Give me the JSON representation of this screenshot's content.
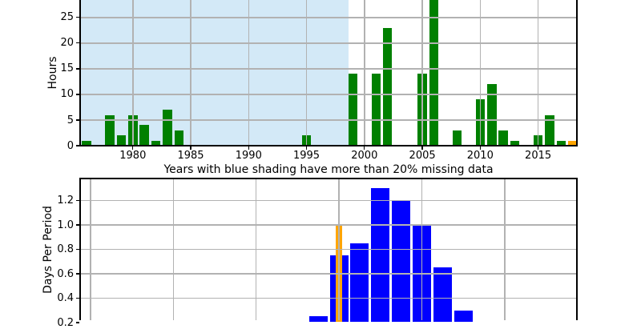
{
  "chart_data": [
    {
      "type": "bar",
      "title": "",
      "xlabel": "Years with blue shading have more than 20% missing data",
      "ylabel": "Hours",
      "x": [
        1976,
        1977,
        1978,
        1979,
        1980,
        1981,
        1982,
        1983,
        1984,
        1985,
        1986,
        1987,
        1988,
        1989,
        1990,
        1991,
        1992,
        1993,
        1994,
        1995,
        1996,
        1997,
        1998,
        1999,
        2000,
        2001,
        2002,
        2003,
        2004,
        2005,
        2006,
        2007,
        2008,
        2009,
        2010,
        2011,
        2012,
        2013,
        2014,
        2015,
        2016,
        2017,
        2018
      ],
      "values": [
        1,
        0,
        6,
        2,
        6,
        4,
        1,
        7,
        3,
        0,
        0,
        0,
        0,
        0,
        0,
        0,
        0,
        0,
        0,
        2,
        0,
        0,
        0,
        14,
        0,
        14,
        23,
        0,
        0,
        14,
        30,
        0,
        3,
        0,
        9,
        12,
        3,
        1,
        0,
        2,
        6,
        1,
        1
      ],
      "clipped_bar_years": [
        2006
      ],
      "orange_bar_years": [
        2018
      ],
      "bar_color": "#008000",
      "highlight_color": "#ffa500",
      "shading_color": "#d3e9f7",
      "shaded_region_years": [
        1975.45,
        1998.6
      ],
      "xticks": [
        1980,
        1985,
        1990,
        1995,
        2000,
        2005,
        2010,
        2015
      ],
      "yticks": [
        0,
        5,
        10,
        15,
        20,
        25
      ],
      "xlim": [
        1975.45,
        2018.35
      ],
      "ylim_visible": [
        0,
        28.4
      ],
      "clipped_at_top": true,
      "grid": true,
      "grid_color": "#b2b2b2"
    },
    {
      "type": "bar",
      "title": "",
      "xlabel": "",
      "ylabel": "Days Per Period",
      "values": [
        0.25,
        0.75,
        0.85,
        1.3,
        1.2,
        1.0,
        0.65,
        0.3
      ],
      "overlay_bar": {
        "index": 1,
        "value": 1.0,
        "color": "#ffa500",
        "narrow": true
      },
      "bar_color": "#0000ff",
      "yticks": [
        0.2,
        0.4,
        0.6,
        0.8,
        1.0,
        1.2
      ],
      "ylim_visible": [
        0.22,
        1.37
      ],
      "xtick_labels_visible": false,
      "clipped_at_bottom": true,
      "grid": true,
      "grid_color": "#b2b2b2"
    }
  ]
}
